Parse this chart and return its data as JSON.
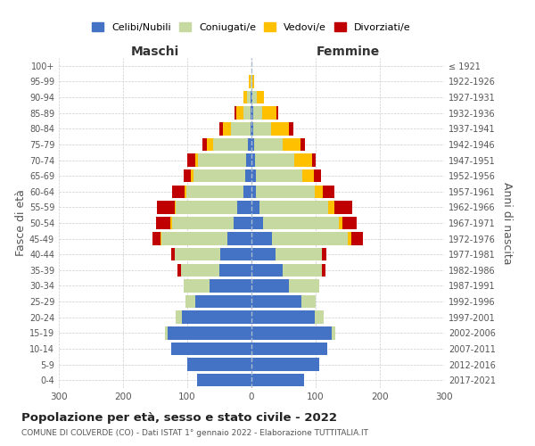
{
  "age_groups": [
    "0-4",
    "5-9",
    "10-14",
    "15-19",
    "20-24",
    "25-29",
    "30-34",
    "35-39",
    "40-44",
    "45-49",
    "50-54",
    "55-59",
    "60-64",
    "65-69",
    "70-74",
    "75-79",
    "80-84",
    "85-89",
    "90-94",
    "95-99",
    "100+"
  ],
  "birth_years": [
    "2017-2021",
    "2012-2016",
    "2007-2011",
    "2002-2006",
    "1997-2001",
    "1992-1996",
    "1987-1991",
    "1982-1986",
    "1977-1981",
    "1972-1976",
    "1967-1971",
    "1962-1966",
    "1957-1961",
    "1952-1956",
    "1947-1951",
    "1942-1946",
    "1937-1941",
    "1932-1936",
    "1927-1931",
    "1922-1926",
    "≤ 1921"
  ],
  "males": {
    "celibe": [
      85,
      100,
      125,
      130,
      108,
      88,
      65,
      50,
      48,
      38,
      28,
      22,
      12,
      10,
      8,
      5,
      2,
      2,
      1,
      0,
      0
    ],
    "coniugato": [
      0,
      0,
      0,
      5,
      10,
      15,
      40,
      60,
      72,
      102,
      96,
      96,
      90,
      80,
      75,
      55,
      30,
      10,
      6,
      2,
      0
    ],
    "vedovo": [
      0,
      0,
      0,
      0,
      0,
      0,
      0,
      0,
      0,
      2,
      2,
      2,
      2,
      4,
      5,
      10,
      12,
      12,
      6,
      2,
      0
    ],
    "divorziato": [
      0,
      0,
      0,
      0,
      0,
      0,
      0,
      5,
      5,
      12,
      22,
      27,
      20,
      12,
      12,
      6,
      6,
      2,
      0,
      0,
      0
    ]
  },
  "females": {
    "nubile": [
      82,
      105,
      118,
      125,
      98,
      78,
      58,
      48,
      38,
      32,
      18,
      12,
      7,
      7,
      6,
      4,
      3,
      3,
      2,
      0,
      0
    ],
    "coniugata": [
      0,
      0,
      0,
      5,
      14,
      22,
      48,
      62,
      72,
      118,
      118,
      108,
      92,
      72,
      60,
      45,
      28,
      14,
      6,
      2,
      0
    ],
    "vedova": [
      0,
      0,
      0,
      0,
      0,
      0,
      0,
      0,
      0,
      5,
      6,
      9,
      12,
      18,
      28,
      28,
      28,
      22,
      12,
      2,
      0
    ],
    "divorziata": [
      0,
      0,
      0,
      0,
      0,
      0,
      0,
      5,
      6,
      18,
      22,
      28,
      18,
      12,
      6,
      6,
      6,
      2,
      0,
      0,
      0
    ]
  },
  "colors": {
    "celibe": "#4472c4",
    "coniugato": "#c5d9a0",
    "vedovo": "#ffc000",
    "divorziato": "#c00000"
  },
  "xlim": 300,
  "title": "Popolazione per età, sesso e stato civile - 2022",
  "subtitle": "COMUNE DI COLVERDE (CO) - Dati ISTAT 1° gennaio 2022 - Elaborazione TUTTITALIA.IT",
  "ylabel_left": "Fasce di età",
  "ylabel_right": "Anni di nascita",
  "xlabel_left": "Maschi",
  "xlabel_right": "Femmine",
  "bg_color": "#ffffff",
  "grid_color": "#cccccc"
}
